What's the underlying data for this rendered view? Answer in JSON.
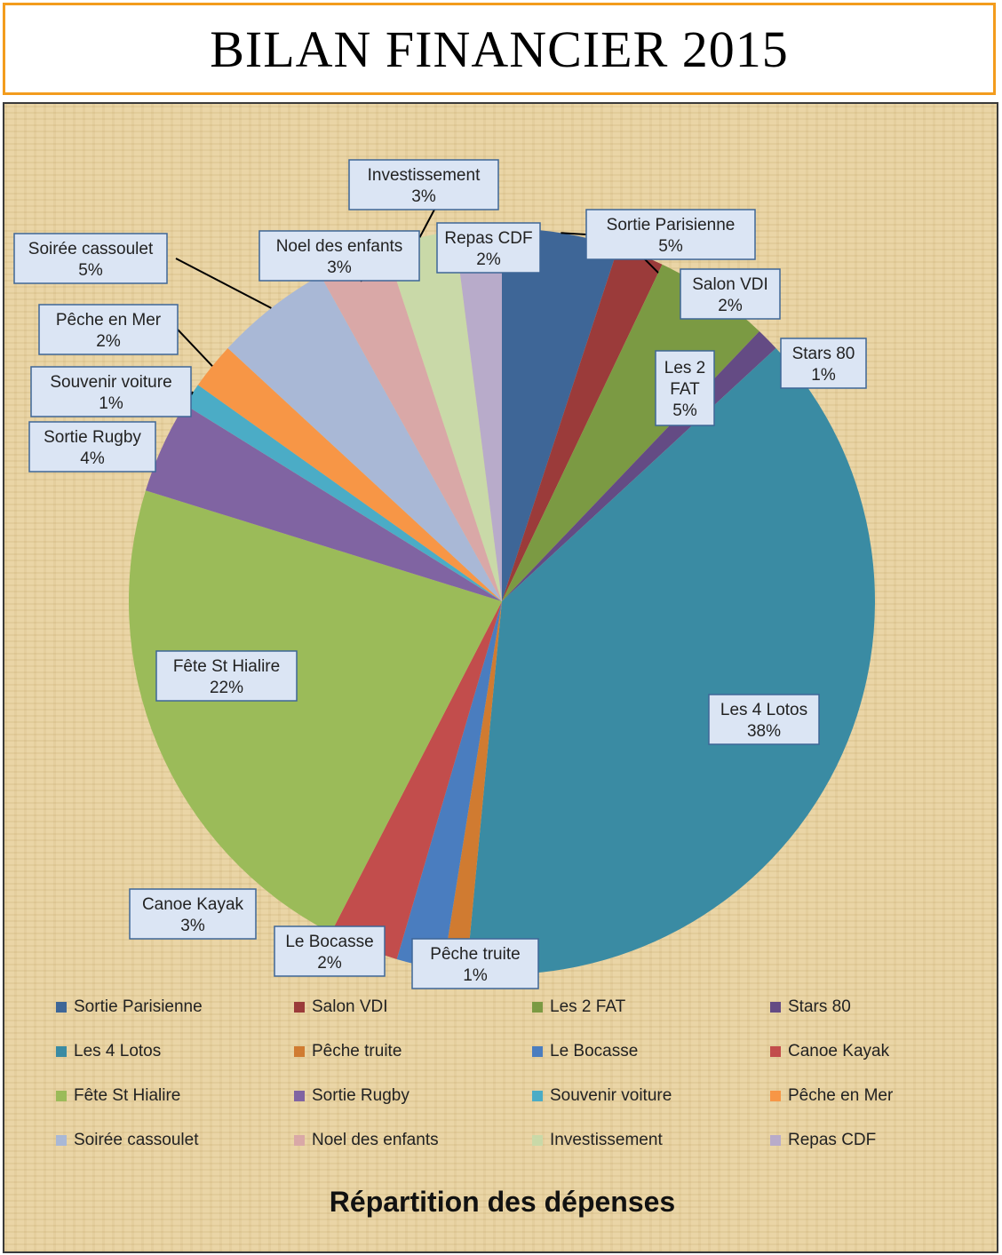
{
  "title": "BILAN FINANCIER 2015",
  "chart_data": {
    "type": "pie",
    "title": "Répartition des dépenses",
    "legend_position": "bottom",
    "slices": [
      {
        "name": "Sortie Parisienne",
        "value": 5,
        "label": "5%",
        "color": "#3e6697"
      },
      {
        "name": "Salon VDI",
        "value": 2,
        "label": "2%",
        "color": "#9b3b3a"
      },
      {
        "name": "Les 2 FAT",
        "value": 5,
        "label": "5%",
        "color": "#7b9a43"
      },
      {
        "name": "Stars 80",
        "value": 1,
        "label": "1%",
        "color": "#644b84"
      },
      {
        "name": "Les 4 Lotos",
        "value": 38,
        "label": "38%",
        "color": "#3a8ba3"
      },
      {
        "name": "Pêche truite",
        "value": 1,
        "label": "1%",
        "color": "#d07b31"
      },
      {
        "name": "Le Bocasse",
        "value": 2,
        "label": "2%",
        "color": "#4a7dbf"
      },
      {
        "name": "Canoe Kayak",
        "value": 3,
        "label": "3%",
        "color": "#c24d4c"
      },
      {
        "name": "Fête St Hialire",
        "value": 22,
        "label": "22%",
        "color": "#9bbb59"
      },
      {
        "name": "Sortie Rugby",
        "value": 4,
        "label": "4%",
        "color": "#8064a2"
      },
      {
        "name": "Souvenir voiture",
        "value": 1,
        "label": "1%",
        "color": "#4bacc6"
      },
      {
        "name": "Pêche en Mer",
        "value": 2,
        "label": "2%",
        "color": "#f79646"
      },
      {
        "name": "Soirée cassoulet",
        "value": 5,
        "label": "5%",
        "color": "#a9b8d6"
      },
      {
        "name": "Noel des enfants",
        "value": 3,
        "label": "3%",
        "color": "#d9a8a7"
      },
      {
        "name": "Investissement",
        "value": 3,
        "label": "3%",
        "color": "#c9d9a8"
      },
      {
        "name": "Repas CDF",
        "value": 2,
        "label": "2%",
        "color": "#b8abca"
      }
    ]
  }
}
